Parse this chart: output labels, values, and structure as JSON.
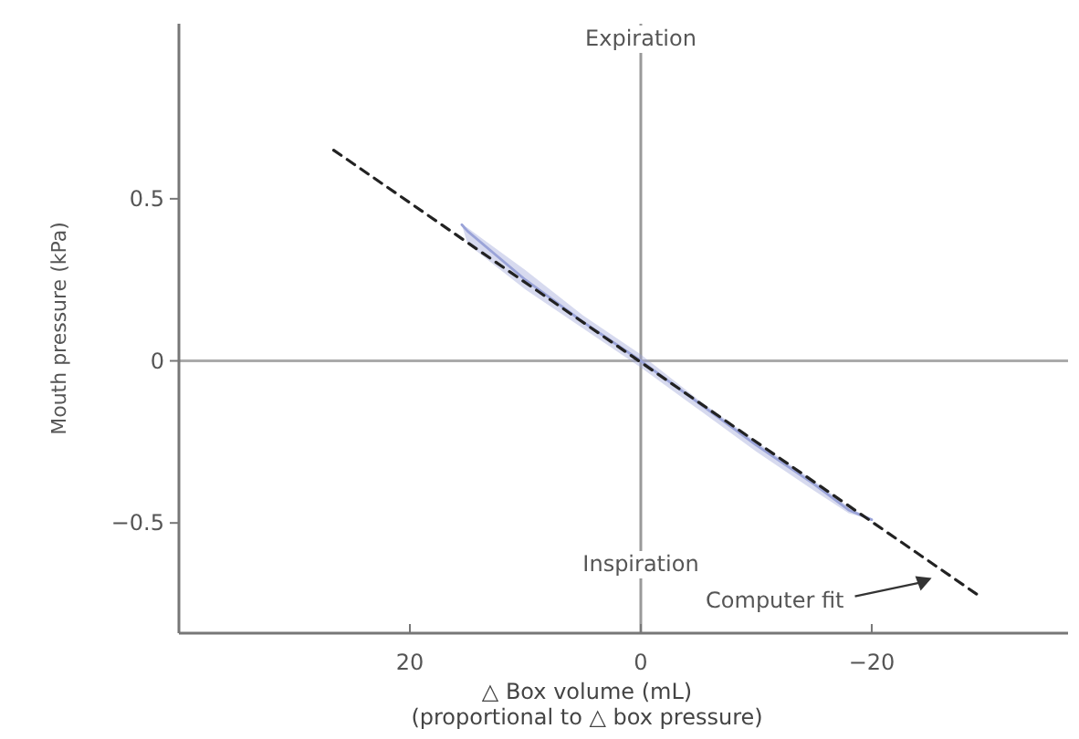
{
  "chart_data": {
    "type": "line",
    "xlabel": "△ Box volume (mL)\n(proportional to △ box pressure)",
    "ylabel": "Mouth pressure (kPa)",
    "xlim": [
      40,
      -37
    ],
    "xticks": [
      20,
      0,
      -20
    ],
    "ylim": [
      -0.84,
      1.04
    ],
    "yticks": [
      0.5,
      0,
      -0.5
    ],
    "grid": false,
    "marker": "none",
    "series": [
      {
        "color": "#9aa3d8",
        "line_style": "solid",
        "x": [
          15.5,
          15,
          10,
          5,
          0,
          -5,
          -10,
          -15,
          -18,
          -20
        ],
        "values": [
          0.42,
          0.4,
          0.25,
          0.12,
          0,
          -0.13,
          -0.26,
          -0.38,
          -0.46,
          -0.49
        ],
        "lower": [
          0.42,
          0.36,
          0.22,
          0.1,
          -0.02,
          -0.15,
          -0.28,
          -0.4,
          -0.47,
          -0.49
        ],
        "upper": [
          0.42,
          0.41,
          0.28,
          0.14,
          0.02,
          -0.12,
          -0.25,
          -0.37,
          -0.45,
          -0.49
        ]
      },
      {
        "color": "#222222",
        "line_style": "dashed",
        "x": [
          26.6,
          -29.1
        ],
        "values": [
          0.65,
          -0.72
        ]
      }
    ],
    "ref_lines": [
      {
        "axis": "x",
        "value": 0,
        "color": "#999999",
        "line_style": "solid"
      },
      {
        "axis": "y",
        "value": 0,
        "color": "#aaaaaa",
        "line_style": "solid"
      }
    ],
    "annotations": [
      "Expiration",
      "Inspiration",
      {
        "text": "Computer fit",
        "x": -25.5,
        "y": -0.67
      }
    ]
  }
}
